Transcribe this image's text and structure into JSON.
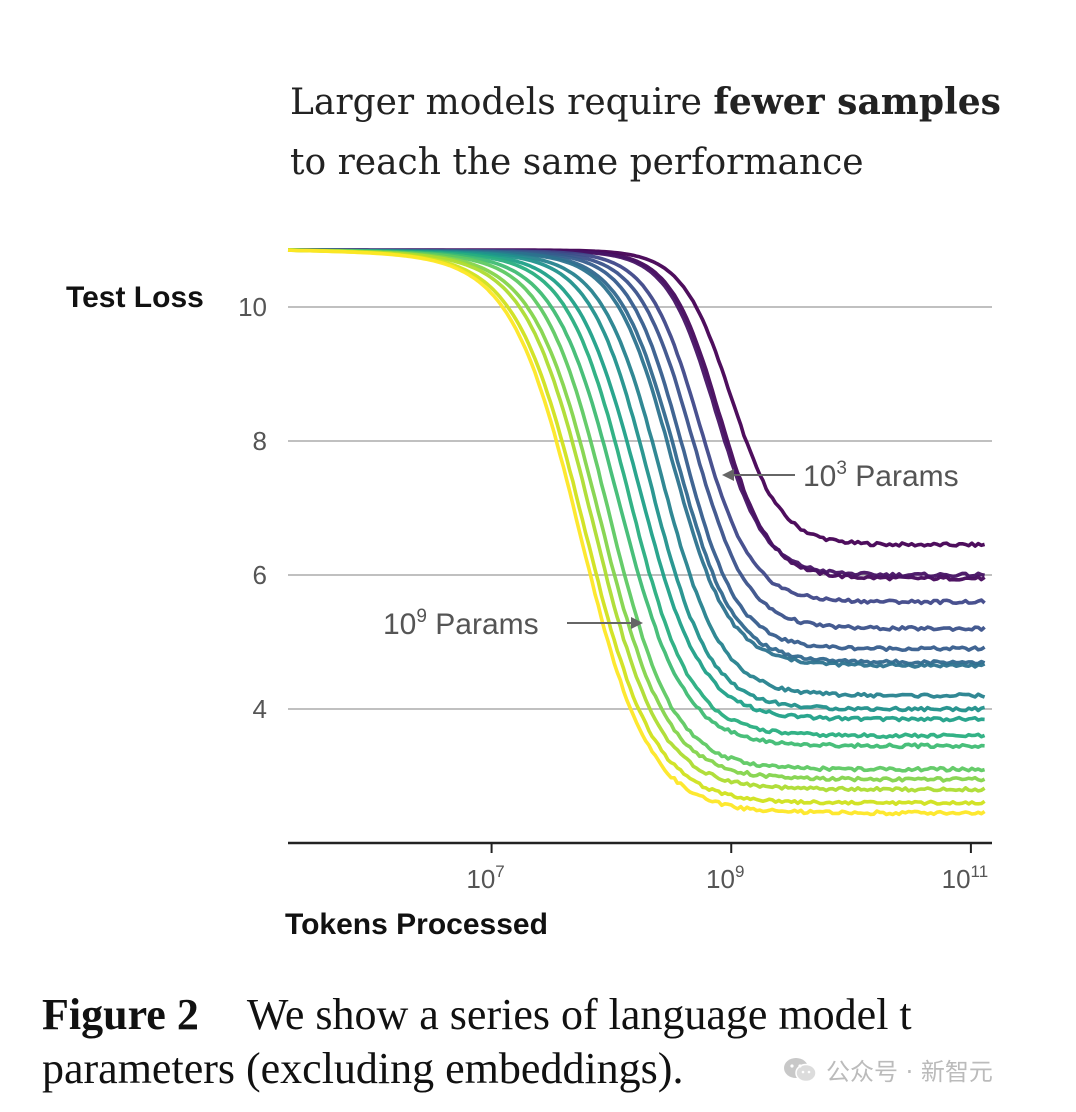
{
  "header": {
    "line1_pre": "Larger models require ",
    "line1_bold": "fewer samples",
    "line2": "to reach the same performance"
  },
  "chart_data": {
    "type": "line",
    "ylabel": "Test Loss",
    "xlabel": "Tokens Processed",
    "x_scale": "log",
    "xlim": [
      200000,
      150000000000
    ],
    "ylim": [
      2,
      11
    ],
    "y_ticks": [
      4,
      6,
      8,
      10
    ],
    "x_ticks": [
      {
        "value": 10000000,
        "base": "10",
        "exp": "7"
      },
      {
        "value": 1000000000,
        "base": "10",
        "exp": "9"
      },
      {
        "value": 100000000000,
        "base": "10",
        "exp": "11"
      }
    ],
    "grid": "horizontal",
    "annotations": [
      {
        "base": "10",
        "exp": "3",
        "text": " Params",
        "arrow": "left"
      },
      {
        "base": "10",
        "exp": "9",
        "text": " Params",
        "arrow": "right"
      }
    ],
    "series_note": "unnamed curves colored from dark purple (smallest model) to yellow (largest model)",
    "series": [
      {
        "color": "#440154",
        "start": 10.85,
        "plateau": 6.45,
        "x_mid": 1000000000,
        "drop_width": 1.0
      },
      {
        "color": "#46085c",
        "start": 10.85,
        "plateau": 5.95,
        "x_mid": 800000000,
        "drop_width": 1.0
      },
      {
        "color": "#471365",
        "start": 10.85,
        "plateau": 6.0,
        "x_mid": 750000000,
        "drop_width": 1.0
      },
      {
        "color": "#3f4889",
        "start": 10.85,
        "plateau": 5.6,
        "x_mid": 550000000,
        "drop_width": 1.05
      },
      {
        "color": "#3b528b",
        "start": 10.85,
        "plateau": 5.2,
        "x_mid": 480000000,
        "drop_width": 1.1
      },
      {
        "color": "#365d8d",
        "start": 10.85,
        "plateau": 4.9,
        "x_mid": 400000000,
        "drop_width": 1.1
      },
      {
        "color": "#31688e",
        "start": 10.85,
        "plateau": 4.7,
        "x_mid": 350000000,
        "drop_width": 1.15
      },
      {
        "color": "#2c728e",
        "start": 10.85,
        "plateau": 4.65,
        "x_mid": 320000000,
        "drop_width": 1.15
      },
      {
        "color": "#26828e",
        "start": 10.85,
        "plateau": 4.2,
        "x_mid": 260000000,
        "drop_width": 1.2
      },
      {
        "color": "#21918c",
        "start": 10.85,
        "plateau": 4.0,
        "x_mid": 210000000,
        "drop_width": 1.2
      },
      {
        "color": "#1fa088",
        "start": 10.85,
        "plateau": 3.85,
        "x_mid": 170000000,
        "drop_width": 1.25
      },
      {
        "color": "#28ae80",
        "start": 10.85,
        "plateau": 3.6,
        "x_mid": 140000000,
        "drop_width": 1.25
      },
      {
        "color": "#3fbc73",
        "start": 10.85,
        "plateau": 3.45,
        "x_mid": 115000000,
        "drop_width": 1.3
      },
      {
        "color": "#5ec962",
        "start": 10.85,
        "plateau": 3.1,
        "x_mid": 95000000,
        "drop_width": 1.3
      },
      {
        "color": "#84d44b",
        "start": 10.85,
        "plateau": 2.95,
        "x_mid": 80000000,
        "drop_width": 1.35
      },
      {
        "color": "#addc30",
        "start": 10.85,
        "plateau": 2.8,
        "x_mid": 70000000,
        "drop_width": 1.35
      },
      {
        "color": "#d0e11c",
        "start": 10.85,
        "plateau": 2.6,
        "x_mid": 60000000,
        "drop_width": 1.4
      },
      {
        "color": "#fde725",
        "start": 10.85,
        "plateau": 2.45,
        "x_mid": 55000000,
        "drop_width": 1.4
      }
    ]
  },
  "caption": {
    "figure": "Figure 2",
    "line1": "We show a series of language model t",
    "line2": "parameters (excluding embeddings)."
  },
  "watermark": {
    "text": "公众号 · 新智元",
    "icon": "wechat-icon"
  }
}
